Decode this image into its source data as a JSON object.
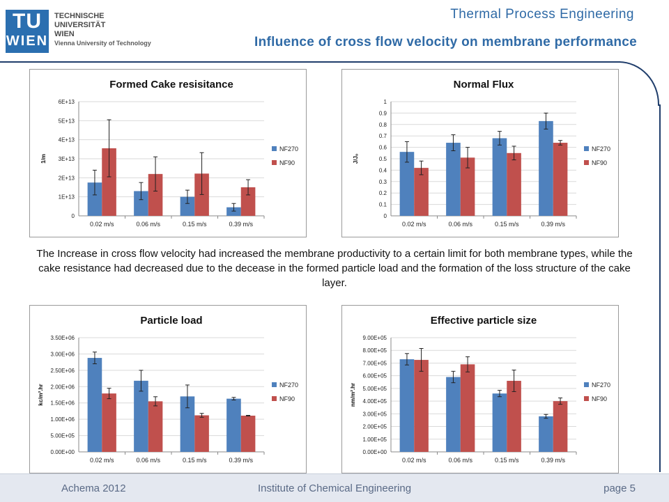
{
  "logo": {
    "mark_top": "TU",
    "mark_bottom": "WIEN",
    "line1": "TECHNISCHE",
    "line2": "UNIVERSITÄT",
    "line3": "WIEN",
    "line4": "Vienna University of Technology"
  },
  "header": {
    "presentation_title": "Thermal Process Engineering",
    "slide_title": "Influence of cross flow velocity on membrane performance"
  },
  "caption": "The Increase in cross flow velocity had increased the membrane productivity to a certain limit for both membrane types, while the cake resistance had decreased due to the decease in the formed particle load and the formation of the loss structure of the cake layer.",
  "footer": {
    "left": "Achema 2012",
    "center": "Institute of Chemical Engineering",
    "right": "page 5"
  },
  "colors": {
    "nf270": "#4f81bd",
    "nf90": "#c0504d",
    "accent": "#2f6aa6"
  },
  "chart_data": [
    {
      "type": "bar",
      "title": "Formed Cake resisitance",
      "ylabel": "1/m",
      "categories": [
        "0.02 m/s",
        "0.06 m/s",
        "0.15 m/s",
        "0.39 m/s"
      ],
      "ylim": [
        0,
        60000000000000.0
      ],
      "ytick_values": [
        0,
        10000000000000.0,
        20000000000000.0,
        30000000000000.0,
        40000000000000.0,
        50000000000000.0,
        60000000000000.0
      ],
      "ytick_labels": [
        "0",
        "1E+13",
        "2E+13",
        "3E+13",
        "4E+13",
        "5E+13",
        "6E+13"
      ],
      "grid": true,
      "legend": "right",
      "series": [
        {
          "name": "NF270",
          "values": [
            17500000000000.0,
            13000000000000.0,
            10000000000000.0,
            4500000000000.0
          ],
          "errors": [
            6500000000000.0,
            4500000000000.0,
            3500000000000.0,
            2000000000000.0
          ]
        },
        {
          "name": "NF90",
          "values": [
            35500000000000.0,
            22000000000000.0,
            22200000000000.0,
            15000000000000.0
          ],
          "errors": [
            15000000000000.0,
            9000000000000.0,
            11000000000000.0,
            4000000000000.0
          ]
        }
      ]
    },
    {
      "type": "bar",
      "title": "Normal Flux",
      "ylabel": "J/Jₒ",
      "categories": [
        "0.02 m/s",
        "0.06 m/s",
        "0.15 m/s",
        "0.39 m/s"
      ],
      "ylim": [
        0,
        1
      ],
      "ytick_values": [
        0,
        0.1,
        0.2,
        0.3,
        0.4,
        0.5,
        0.6,
        0.7,
        0.8,
        0.9,
        1
      ],
      "ytick_labels": [
        "0",
        "0.1",
        "0.2",
        "0.3",
        "0.4",
        "0.5",
        "0.6",
        "0.7",
        "0.8",
        "0.9",
        "1"
      ],
      "grid": true,
      "legend": "right",
      "series": [
        {
          "name": "NF270",
          "values": [
            0.56,
            0.64,
            0.68,
            0.83
          ],
          "errors": [
            0.09,
            0.07,
            0.06,
            0.07
          ]
        },
        {
          "name": "NF90",
          "values": [
            0.42,
            0.51,
            0.55,
            0.64
          ],
          "errors": [
            0.06,
            0.09,
            0.06,
            0.02
          ]
        }
      ]
    },
    {
      "type": "bar",
      "title": "Particle load",
      "ylabel": "kc/m².hr",
      "categories": [
        "0.02 m/s",
        "0.06 m/s",
        "0.15 m/s",
        "0.39 m/s"
      ],
      "ylim": [
        0,
        3500000.0
      ],
      "ytick_values": [
        0,
        500000.0,
        1000000.0,
        1500000.0,
        2000000.0,
        2500000.0,
        3000000.0,
        3500000.0
      ],
      "ytick_labels": [
        "0.00E+00",
        "5.00E+05",
        "1.00E+06",
        "1.50E+06",
        "2.00E+06",
        "2.50E+06",
        "3.00E+06",
        "3.50E+06"
      ],
      "grid": true,
      "legend": "right",
      "series": [
        {
          "name": "NF270",
          "values": [
            2880000.0,
            2180000.0,
            1700000.0,
            1630000.0
          ],
          "errors": [
            180000.0,
            320000.0,
            350000.0,
            40000.0
          ]
        },
        {
          "name": "NF90",
          "values": [
            1790000.0,
            1550000.0,
            1120000.0,
            1110000.0
          ],
          "errors": [
            160000.0,
            140000.0,
            60000.0,
            10000.0
          ]
        }
      ]
    },
    {
      "type": "bar",
      "title": "Effective particle size",
      "ylabel": "nm/m².hr",
      "categories": [
        "0.02 m/s",
        "0.06 m/s",
        "0.15 m/s",
        "0.39 m/s"
      ],
      "ylim": [
        0,
        900000.0
      ],
      "ytick_values": [
        0,
        100000.0,
        200000.0,
        300000.0,
        400000.0,
        500000.0,
        600000.0,
        700000.0,
        800000.0,
        900000.0
      ],
      "ytick_labels": [
        "0.00E+00",
        "1.00E+05",
        "2.00E+05",
        "3.00E+05",
        "4.00E+05",
        "5.00E+05",
        "6.00E+05",
        "7.00E+05",
        "8.00E+05",
        "9.00E+05"
      ],
      "grid": true,
      "legend": "right",
      "series": [
        {
          "name": "NF270",
          "values": [
            730000.0,
            590000.0,
            460000.0,
            280000.0
          ],
          "errors": [
            45000.0,
            45000.0,
            25000.0,
            15000.0
          ]
        },
        {
          "name": "NF90",
          "values": [
            725000.0,
            690000.0,
            560000.0,
            400000.0
          ],
          "errors": [
            90000.0,
            60000.0,
            85000.0,
            25000.0
          ]
        }
      ]
    }
  ]
}
